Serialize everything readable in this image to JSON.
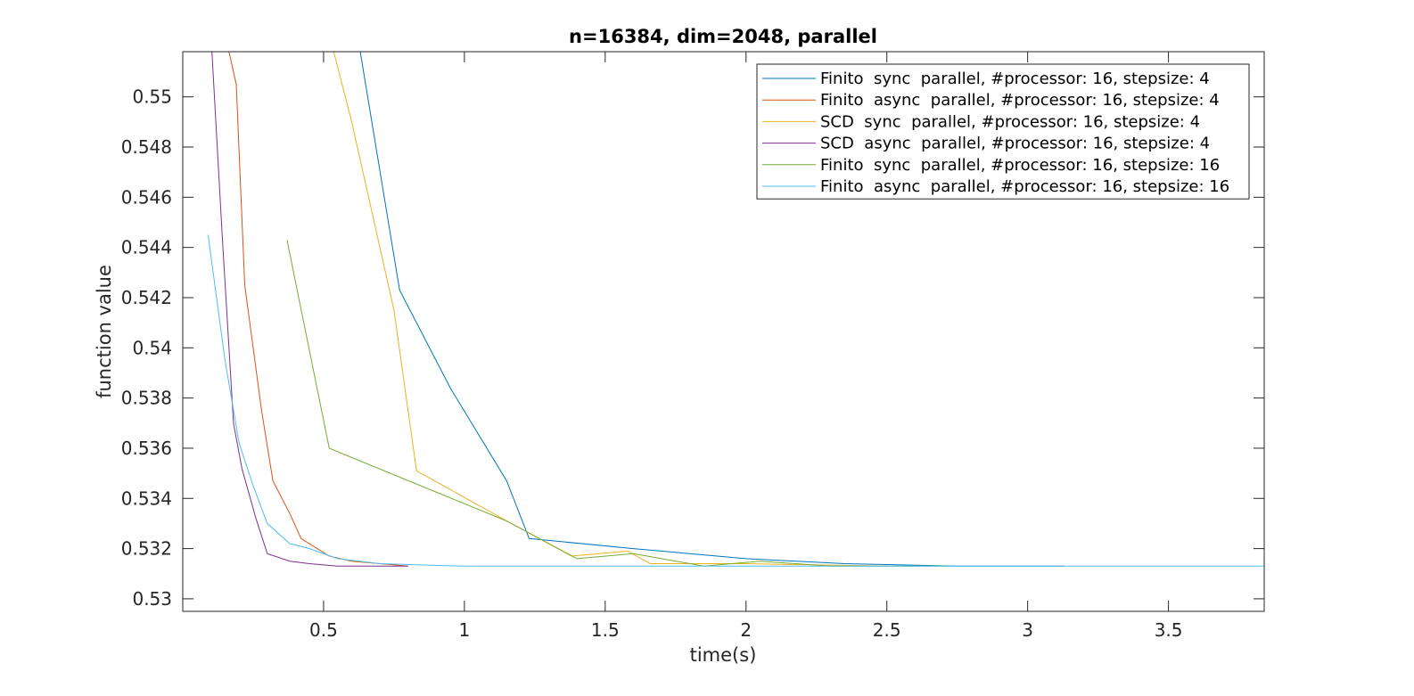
{
  "chart_data": {
    "type": "line",
    "title": "n=16384, dim=2048, parallel",
    "xlabel": "time(s)",
    "ylabel": "function value",
    "xlim": [
      0.0,
      3.84
    ],
    "ylim": [
      0.5295,
      0.5518
    ],
    "xticks": [
      0.5,
      1,
      1.5,
      2,
      2.5,
      3,
      3.5
    ],
    "xtick_labels": [
      "0.5",
      "1",
      "1.5",
      "2",
      "2.5",
      "3",
      "3.5"
    ],
    "yticks": [
      0.53,
      0.532,
      0.534,
      0.536,
      0.538,
      0.54,
      0.542,
      0.544,
      0.546,
      0.548,
      0.55
    ],
    "ytick_labels": [
      "0.53",
      "0.532",
      "0.534",
      "0.536",
      "0.538",
      "0.54",
      "0.542",
      "0.544",
      "0.546",
      "0.548",
      "0.55"
    ],
    "grid": false,
    "legend_position": "top-right",
    "series": [
      {
        "name": "Finito  sync  parallel, #processor: 16, stepsize: 4",
        "color": "#0072BD",
        "x": [
          0.62,
          0.77,
          0.95,
          1.15,
          1.23,
          1.6,
          2.0,
          2.35,
          2.75,
          3.13
        ],
        "y": [
          0.5525,
          0.5423,
          0.5384,
          0.5347,
          0.5324,
          0.532,
          0.5316,
          0.5314,
          0.5313,
          0.5313
        ]
      },
      {
        "name": "Finito  async  parallel, #processor: 16, stepsize: 4",
        "color": "#D95319",
        "x": [
          0.15,
          0.19,
          0.22,
          0.28,
          0.32,
          0.38,
          0.42,
          0.52,
          0.6,
          0.7,
          0.8
        ],
        "y": [
          0.5525,
          0.5505,
          0.5425,
          0.5375,
          0.5347,
          0.5334,
          0.5324,
          0.5317,
          0.5315,
          0.5314,
          0.5313
        ]
      },
      {
        "name": "SCD  sync  parallel, #processor: 16, stepsize: 4",
        "color": "#EDB120",
        "x": [
          0.52,
          0.6,
          0.75,
          0.83,
          1.15,
          1.38,
          1.58,
          1.66,
          2.0,
          2.5
        ],
        "y": [
          0.5525,
          0.549,
          0.5415,
          0.5351,
          0.5331,
          0.5317,
          0.5319,
          0.5314,
          0.5314,
          0.5313
        ]
      },
      {
        "name": "SCD  async  parallel, #processor: 16, stepsize: 4",
        "color": "#7E2F8E",
        "x": [
          0.1,
          0.14,
          0.18,
          0.21,
          0.26,
          0.3,
          0.38,
          0.45,
          0.55,
          0.7,
          0.8
        ],
        "y": [
          0.5525,
          0.5445,
          0.537,
          0.5352,
          0.5332,
          0.5318,
          0.5315,
          0.5314,
          0.5313,
          0.5313,
          0.5313
        ]
      },
      {
        "name": "Finito  sync  parallel, #processor: 16, stepsize: 16",
        "color": "#77AC30",
        "x": [
          0.37,
          0.52,
          1.15,
          1.4,
          1.6,
          1.85,
          2.05,
          2.3,
          2.72
        ],
        "y": [
          0.5443,
          0.536,
          0.5331,
          0.5316,
          0.5318,
          0.5313,
          0.5315,
          0.5313,
          0.5313
        ]
      },
      {
        "name": "Finito  async  parallel, #processor: 16, stepsize: 16",
        "color": "#4DBEEE",
        "x": [
          0.09,
          0.15,
          0.2,
          0.25,
          0.3,
          0.38,
          0.45,
          0.55,
          0.7,
          1.0,
          2.0,
          3.0,
          3.84
        ],
        "y": [
          0.5445,
          0.5395,
          0.5362,
          0.5345,
          0.533,
          0.5322,
          0.532,
          0.5316,
          0.5314,
          0.5313,
          0.5313,
          0.5313,
          0.5313
        ]
      }
    ]
  }
}
